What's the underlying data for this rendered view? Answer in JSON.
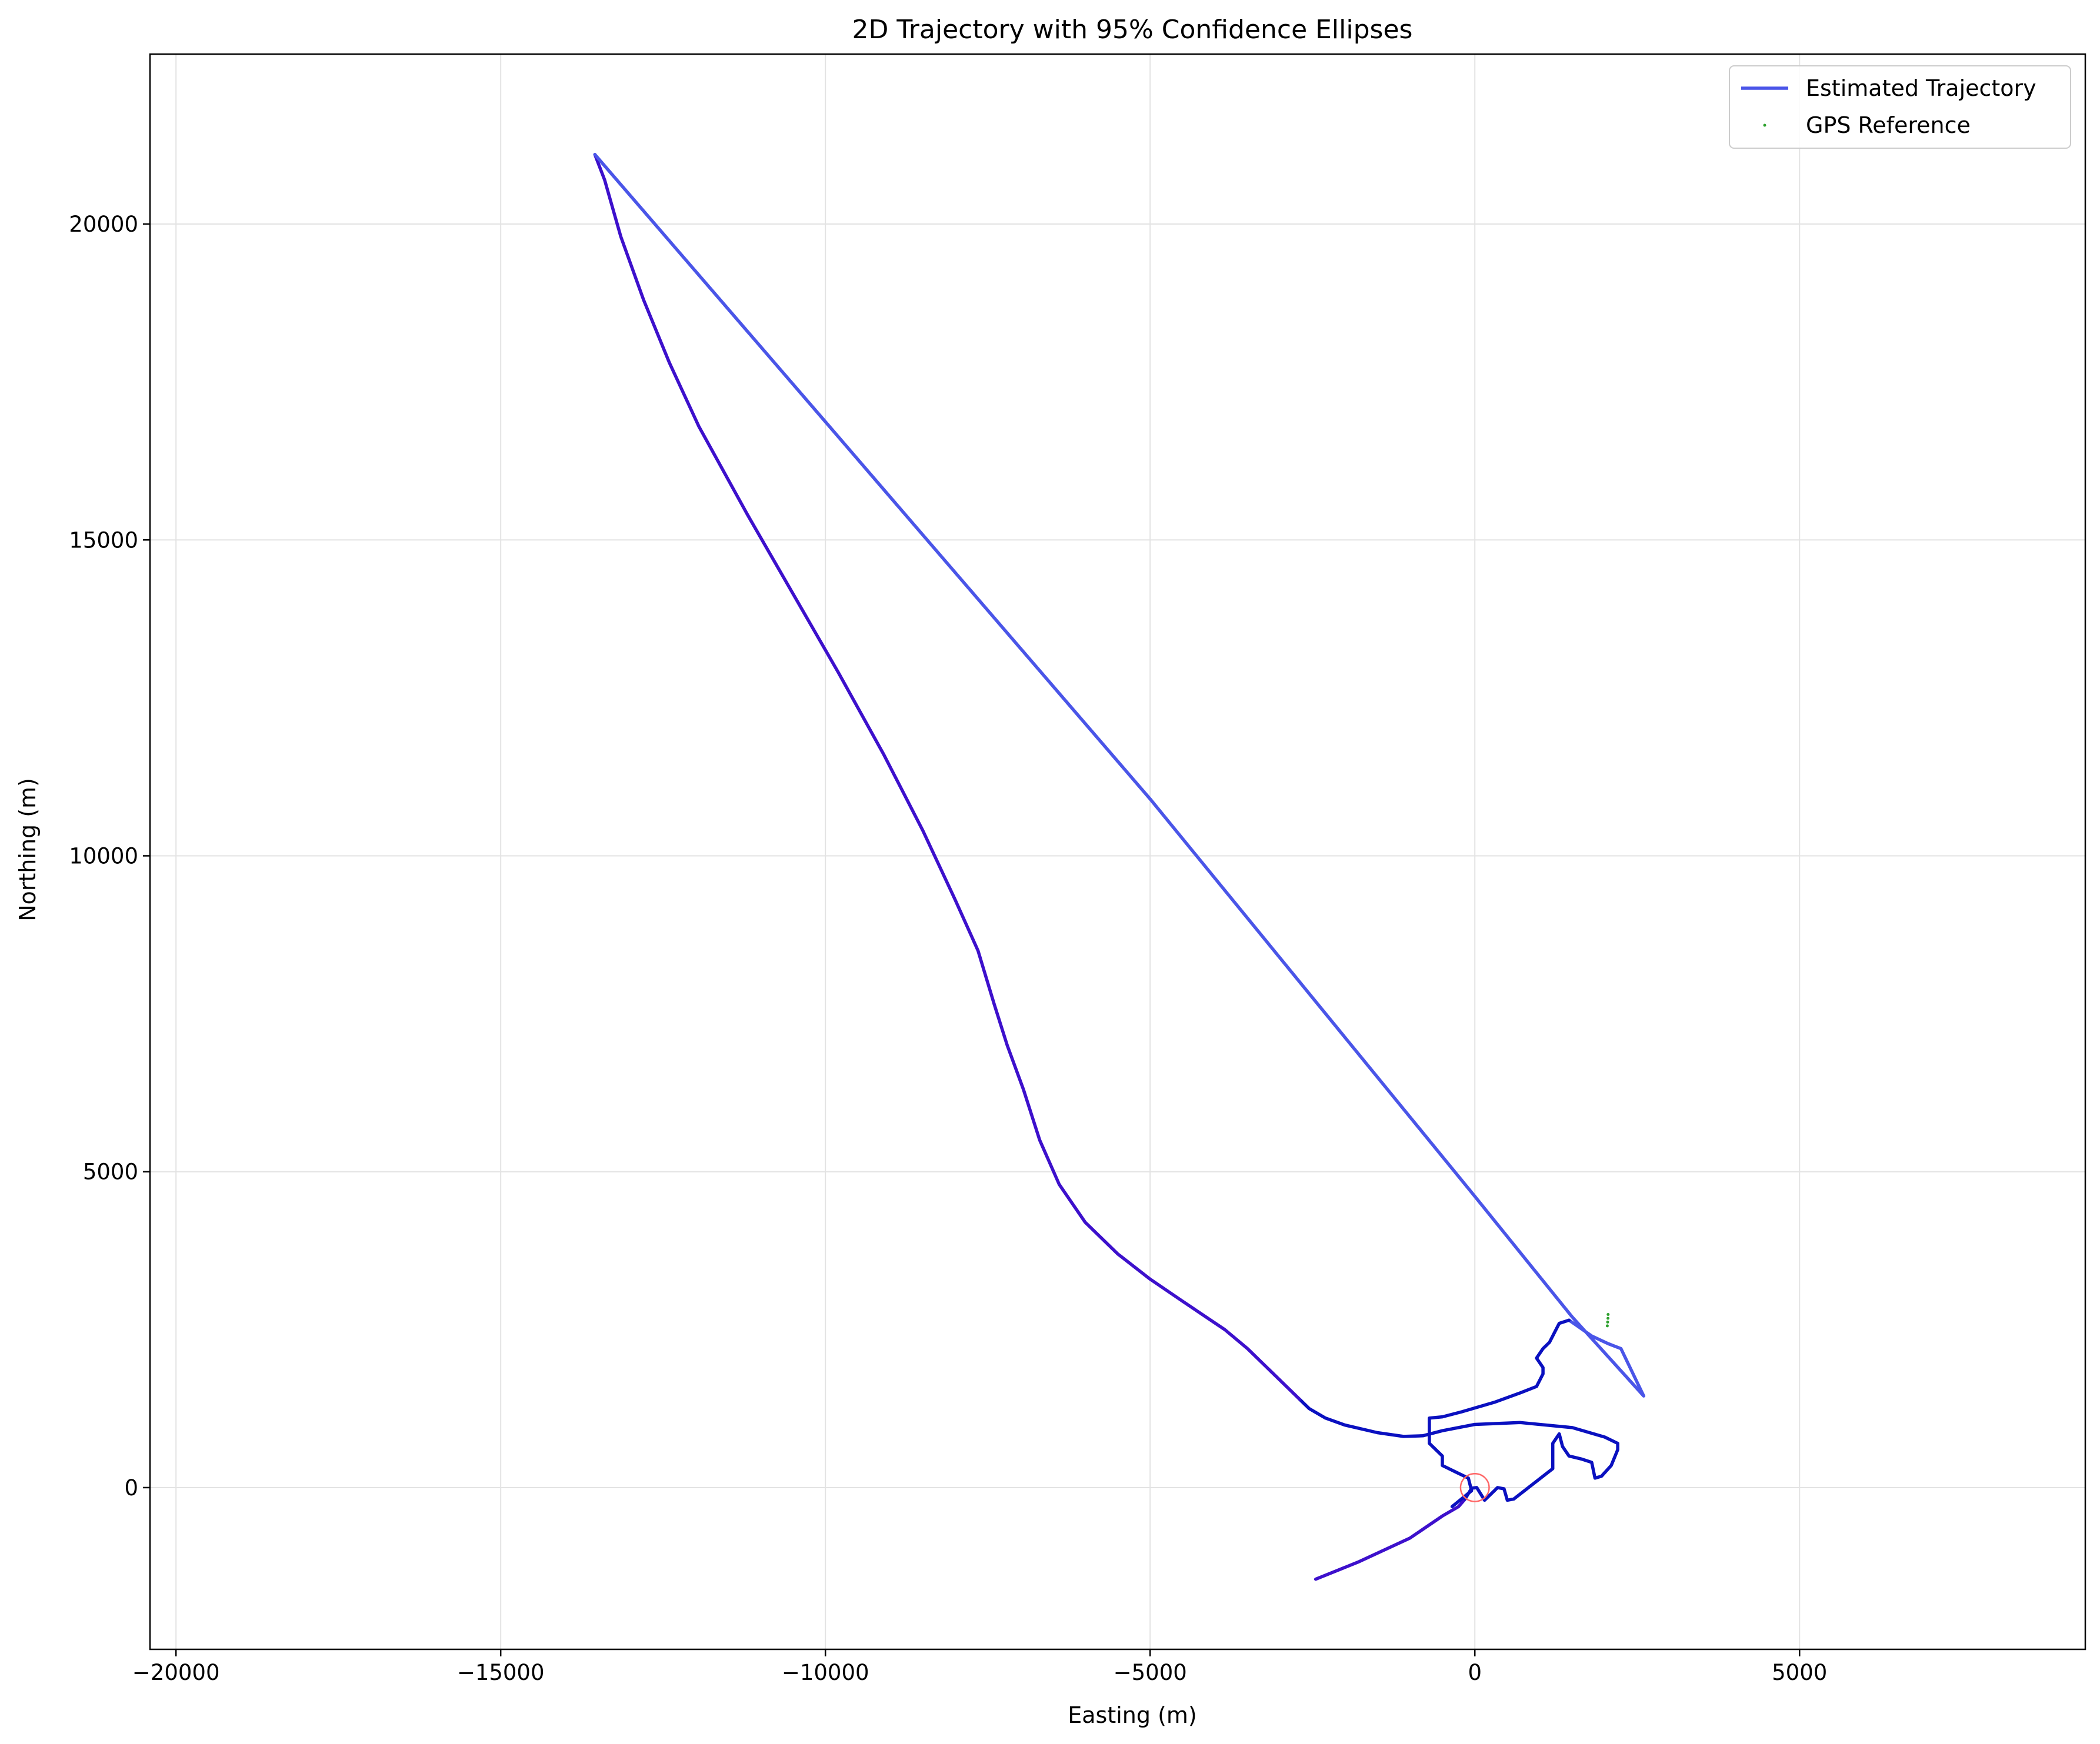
{
  "chart_data": {
    "type": "line",
    "title": "2D Trajectory with 95% Confidence Ellipses",
    "xlabel": "Easting (m)",
    "ylabel": "Northing (m)",
    "xlim": [
      -20400,
      9400
    ],
    "ylim": [
      -2560,
      22690
    ],
    "xticks": [
      -20000,
      -15000,
      -10000,
      -5000,
      0,
      5000
    ],
    "xtick_labels": [
      "−20000",
      "−15000",
      "−10000",
      "−5000",
      "0",
      "5000"
    ],
    "yticks": [
      0,
      5000,
      10000,
      15000,
      20000
    ],
    "ytick_labels": [
      "0",
      "5000",
      "10000",
      "15000",
      "20000"
    ],
    "grid": true,
    "legend_position": "top-right",
    "legend": [
      {
        "label": "Estimated Trajectory",
        "marker": "line",
        "color": "#0000ee"
      },
      {
        "label": "GPS Reference",
        "marker": "dot",
        "color": "#2ca02c"
      }
    ],
    "series": [
      {
        "name": "Estimated Trajectory",
        "color": "#0000ee",
        "segments": [
          {
            "color": "#3d10cc",
            "points": [
              [
                -2450,
                -1450
              ],
              [
                -1800,
                -1180
              ],
              [
                -1000,
                -800
              ],
              [
                -500,
                -450
              ],
              [
                -250,
                -300
              ],
              [
                -150,
                -180
              ]
            ]
          },
          {
            "color": "#0a10c0",
            "points": [
              [
                -150,
                -180
              ],
              [
                -50,
                -10
              ],
              [
                30,
                0
              ],
              [
                150,
                -200
              ],
              [
                350,
                0
              ],
              [
                450,
                -20
              ],
              [
                500,
                -200
              ],
              [
                600,
                -180
              ],
              [
                1200,
                300
              ],
              [
                1200,
                700
              ],
              [
                1300,
                850
              ],
              [
                1350,
                650
              ],
              [
                1450,
                500
              ],
              [
                1650,
                450
              ],
              [
                1800,
                400
              ],
              [
                1850,
                150
              ],
              [
                1950,
                180
              ],
              [
                2100,
                350
              ],
              [
                2200,
                600
              ],
              [
                2200,
                700
              ],
              [
                2000,
                800
              ],
              [
                1500,
                950
              ],
              [
                700,
                1030
              ],
              [
                0,
                1000
              ],
              [
                -500,
                900
              ],
              [
                -800,
                820
              ],
              [
                -1100,
                810
              ],
              [
                -1500,
                870
              ],
              [
                -2000,
                990
              ],
              [
                -2300,
                1100
              ],
              [
                -2550,
                1250
              ],
              [
                -2700,
                1400
              ]
            ]
          },
          {
            "color": "#3d10cc",
            "points": [
              [
                -2700,
                1400
              ],
              [
                -2900,
                1600
              ],
              [
                -3200,
                1900
              ],
              [
                -3500,
                2200
              ],
              [
                -3850,
                2500
              ],
              [
                -4500,
                2950
              ],
              [
                -5000,
                3300
              ],
              [
                -5500,
                3700
              ],
              [
                -6000,
                4200
              ],
              [
                -6400,
                4800
              ],
              [
                -6700,
                5500
              ],
              [
                -6950,
                6300
              ],
              [
                -7200,
                7000
              ],
              [
                -7400,
                7650
              ],
              [
                -7650,
                8500
              ],
              [
                -8000,
                9300
              ],
              [
                -8500,
                10400
              ],
              [
                -9100,
                11600
              ],
              [
                -9800,
                12900
              ],
              [
                -10500,
                14150
              ],
              [
                -11200,
                15400
              ],
              [
                -11950,
                16800
              ],
              [
                -12400,
                17800
              ],
              [
                -12800,
                18800
              ],
              [
                -13150,
                19800
              ],
              [
                -13400,
                20700
              ],
              [
                -13550,
                21100
              ]
            ]
          },
          {
            "color": "#4a55e8",
            "points": [
              [
                -13550,
                21100
              ],
              [
                -10000,
                16870
              ],
              [
                -5000,
                10900
              ],
              [
                0,
                4610
              ],
              [
                1500,
                2700
              ],
              [
                2600,
                1450
              ],
              [
                2250,
                2200
              ],
              [
                2050,
                2280
              ],
              [
                1800,
                2400
              ],
              [
                1550,
                2580
              ],
              [
                1450,
                2650
              ]
            ]
          },
          {
            "color": "#0a10c0",
            "points": [
              [
                1450,
                2650
              ],
              [
                1300,
                2600
              ],
              [
                1250,
                2500
              ],
              [
                1150,
                2300
              ],
              [
                1050,
                2200
              ],
              [
                950,
                2050
              ],
              [
                1050,
                1900
              ],
              [
                1050,
                1800
              ],
              [
                950,
                1600
              ],
              [
                700,
                1500
              ],
              [
                300,
                1350
              ],
              [
                -200,
                1200
              ],
              [
                -500,
                1120
              ],
              [
                -700,
                1100
              ],
              [
                -700,
                900
              ],
              [
                -700,
                700
              ],
              [
                -600,
                600
              ],
              [
                -500,
                500
              ],
              [
                -500,
                350
              ],
              [
                -300,
                250
              ],
              [
                -100,
                150
              ],
              [
                -50,
                -50
              ],
              [
                -350,
                -300
              ]
            ]
          }
        ]
      },
      {
        "name": "GPS Reference",
        "color": "#2ca02c",
        "points": [
          [
            2040,
            2560
          ],
          [
            2045,
            2620
          ],
          [
            2050,
            2680
          ],
          [
            2052,
            2740
          ]
        ]
      }
    ],
    "ellipses": [
      {
        "cx": 0,
        "cy": 0,
        "rx": 220,
        "ry": 220,
        "color": "#ff6666"
      }
    ]
  }
}
